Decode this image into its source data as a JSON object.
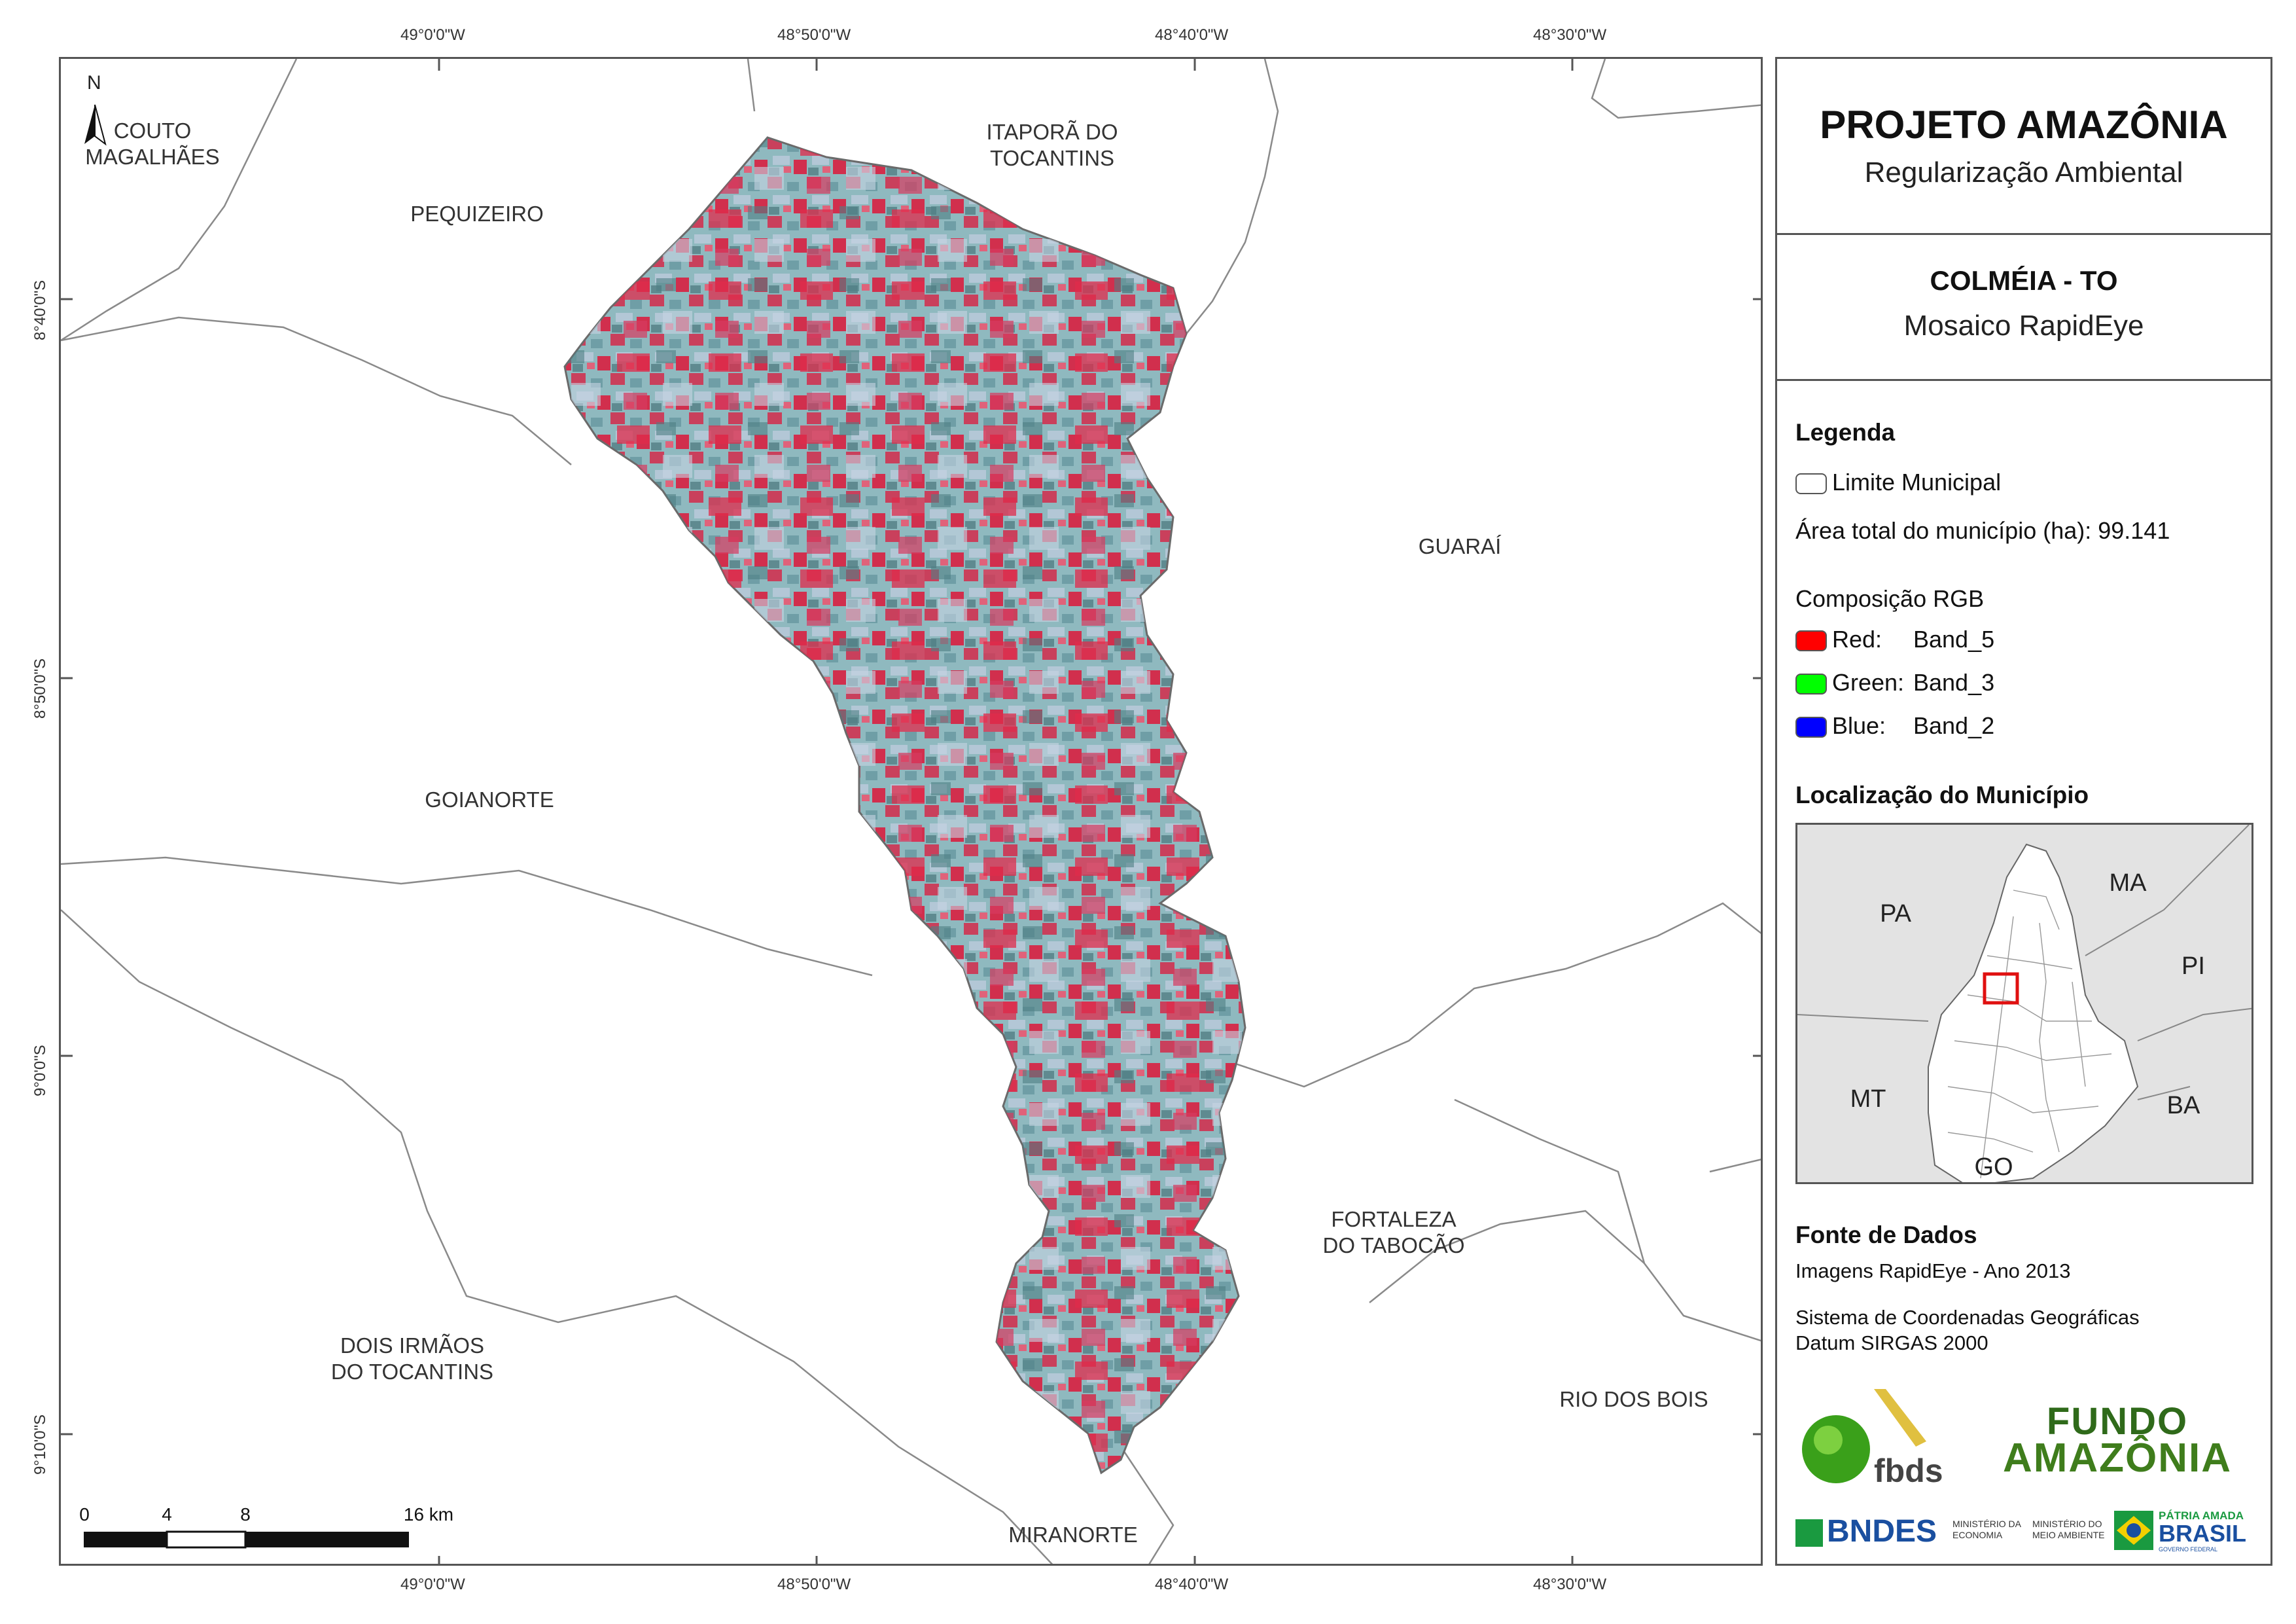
{
  "map": {
    "graticule_top": [
      "49°0'0\"W",
      "48°50'0\"W",
      "48°40'0\"W",
      "48°30'0\"W"
    ],
    "graticule_bottom": [
      "49°0'0\"W",
      "48°50'0\"W",
      "48°40'0\"W",
      "48°30'0\"W"
    ],
    "graticule_left": [
      "8°40'0\"S",
      "8°50'0\"S",
      "9°0'0\"S",
      "9°10'0\"S"
    ],
    "north_label": "N",
    "municipalities": {
      "couto_magalhaes": [
        "COUTO",
        "MAGALHÃES"
      ],
      "itapora": [
        "ITAPORÃ DO",
        "TOCANTINS"
      ],
      "pequizeiro": [
        "PEQUIZEIRO"
      ],
      "guarai": [
        "GUARAÍ"
      ],
      "goianorte": [
        "GOIANORTE"
      ],
      "fortaleza": [
        "FORTALEZA",
        "DO TABOCÃO"
      ],
      "dois_irmaos": [
        "DOIS IRMÃOS",
        "DO TOCANTINS"
      ],
      "rio_dos_bois": [
        "RIO DOS BOIS"
      ],
      "miranorte": [
        "MIRANORTE"
      ]
    },
    "scale_bar": {
      "labels": [
        "0",
        "4",
        "8",
        "16 km"
      ]
    },
    "colors": {
      "crop_red": "#d9304f",
      "vegetation_cyan": "#7fb6b6",
      "boundary": "#777777"
    }
  },
  "panel": {
    "title": "PROJETO AMAZÔNIA",
    "subtitle": "Regularização Ambiental",
    "municipality": "COLMÉIA - TO",
    "product": "Mosaico RapidEye",
    "legend_heading": "Legenda",
    "legend_limit": "Limite Municipal",
    "area_text": "Área total do município (ha): 99.141",
    "rgb_heading": "Composição RGB",
    "rgb": [
      {
        "label": "Red:",
        "band": "Band_5",
        "color": "#ff0000"
      },
      {
        "label": "Green:",
        "band": "Band_3",
        "color": "#00ff00"
      },
      {
        "label": "Blue:",
        "band": "Band_2",
        "color": "#0000ff"
      }
    ],
    "location_heading": "Localização do Município",
    "inset_labels": {
      "pa": "PA",
      "ma": "MA",
      "pi": "PI",
      "mt": "MT",
      "ba": "BA",
      "go": "GO"
    },
    "sources_heading": "Fonte de Dados",
    "source_line": "Imagens RapidEye - Ano 2013",
    "crs_line1": "Sistema de Coordenadas Geográficas",
    "crs_line2": "Datum SIRGAS 2000",
    "logos": {
      "fbds": "fbds",
      "fundo_line1": "FUNDO",
      "fundo_line2": "AMAZÔNIA",
      "bndes": "BNDES",
      "min_economia": [
        "MINISTÉRIO DA",
        "ECONOMIA"
      ],
      "min_meio": [
        "MINISTÉRIO DO",
        "MEIO AMBIENTE"
      ],
      "patria_line1": "PÁTRIA AMADA",
      "patria_line2": "BRASIL",
      "patria_line3": "GOVERNO FEDERAL"
    }
  }
}
